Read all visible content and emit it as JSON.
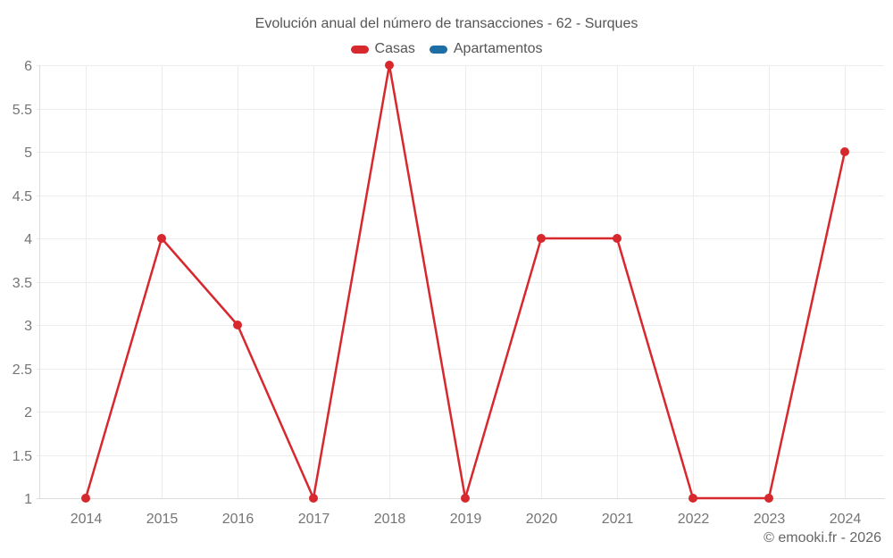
{
  "page": {
    "footer": "© emooki.fr - 2026",
    "background": "#ffffff"
  },
  "chart_data": {
    "type": "line",
    "title": "Evolución anual del número de transacciones - 62 - Surques",
    "categories": [
      "2014",
      "2015",
      "2016",
      "2017",
      "2018",
      "2019",
      "2020",
      "2021",
      "2022",
      "2023",
      "2024"
    ],
    "series": [
      {
        "name": "Casas",
        "color": "#d7282e",
        "values": [
          1,
          4,
          3,
          1,
          6,
          1,
          4,
          4,
          1,
          1,
          5
        ]
      },
      {
        "name": "Apartamentos",
        "color": "#1c6ea4",
        "values": [
          null,
          null,
          null,
          null,
          null,
          null,
          null,
          null,
          null,
          null,
          null
        ]
      }
    ],
    "xlabel": "",
    "ylabel": "",
    "ylim": [
      1,
      6
    ],
    "ytick_step": 0.5,
    "grid": true,
    "legend_position": "top",
    "marker_radius": 5,
    "line_width": 2.5,
    "colors": {
      "grid": "#ececec",
      "axis_line": "#dcdcdc",
      "tick_label": "#757575",
      "title": "#555555",
      "legend_label": "#555555",
      "footer": "#666666"
    }
  }
}
